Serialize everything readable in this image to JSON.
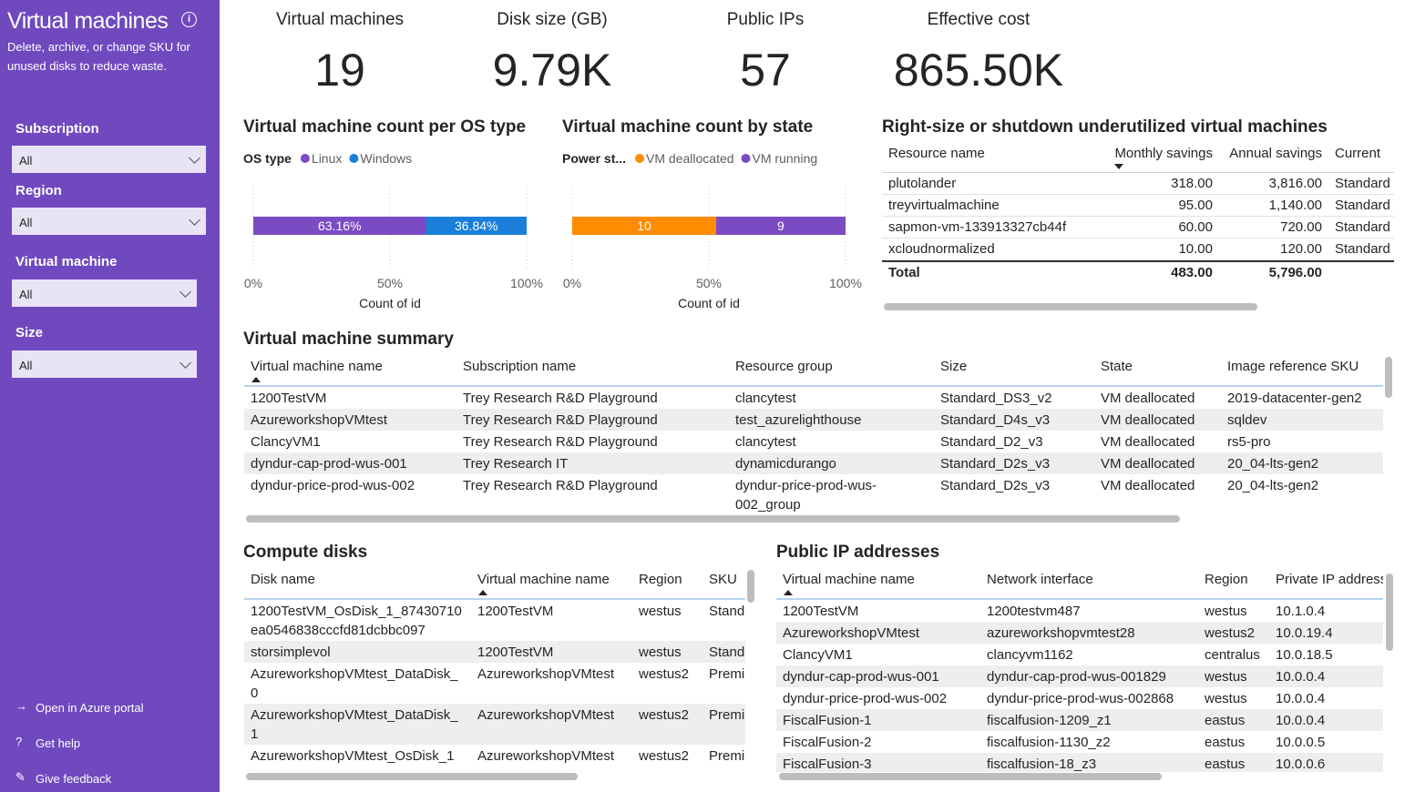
{
  "sidebar": {
    "title": "Virtual machines",
    "description": "Delete, archive, or change SKU for unused disks to reduce waste.",
    "filters": [
      {
        "label": "Subscription",
        "value": "All"
      },
      {
        "label": "Region",
        "value": "All"
      },
      {
        "label": "Virtual machine",
        "value": "All"
      },
      {
        "label": "Size",
        "value": "All"
      }
    ],
    "links": [
      "Open in Azure portal",
      "Get help",
      "Give feedback"
    ]
  },
  "cards": [
    {
      "label": "Virtual machines",
      "value": "19"
    },
    {
      "label": "Disk size (GB)",
      "value": "9.79K"
    },
    {
      "label": "Public IPs",
      "value": "57"
    },
    {
      "label": "Effective cost",
      "value": "865.50K"
    }
  ],
  "chart_data": [
    {
      "type": "bar",
      "orientation": "horizontal",
      "stacking": "percent",
      "title": "Virtual machine count per OS type",
      "legend_title": "OS type",
      "categories": [
        null
      ],
      "series": [
        {
          "name": "Linux",
          "color": "#7b4bc4",
          "values": [
            63.16
          ],
          "value_labels": [
            "63.16%"
          ]
        },
        {
          "name": "Windows",
          "color": "#1a7fd8",
          "values": [
            36.84
          ],
          "value_labels": [
            "36.84%"
          ]
        }
      ],
      "xlim": [
        0,
        100
      ],
      "xticks": [
        {
          "value": 0,
          "label": "0%"
        },
        {
          "value": 50,
          "label": "50%"
        },
        {
          "value": 100,
          "label": "100%"
        }
      ],
      "xlabel": "Count of id",
      "grid": true
    },
    {
      "type": "bar",
      "orientation": "horizontal",
      "stacking": "percent",
      "title": "Virtual machine count by state",
      "legend_title": "Power st...",
      "categories": [
        null
      ],
      "series": [
        {
          "name": "VM deallocated",
          "color": "#ff8c00",
          "values": [
            10
          ]
        },
        {
          "name": "VM running",
          "color": "#7b4bc4",
          "values": [
            9
          ]
        }
      ],
      "xlim": [
        0,
        100
      ],
      "xticks": [
        {
          "value": 0,
          "label": "0%"
        },
        {
          "value": 50,
          "label": "50%"
        },
        {
          "value": 100,
          "label": "100%"
        }
      ],
      "xlabel": "Count of id",
      "grid": true
    }
  ],
  "rightsize_table": {
    "title": "Right-size or shutdown underutilized virtual machines",
    "columns": [
      "Resource name",
      "Monthly savings",
      "Annual savings",
      "Current"
    ],
    "rows": [
      [
        "plutolander",
        "318.00",
        "3,816.00",
        "Standard"
      ],
      [
        "treyvirtualmachine",
        "95.00",
        "1,140.00",
        "Standard"
      ],
      [
        "sapmon-vm-133913327cb44f",
        "60.00",
        "720.00",
        "Standard"
      ],
      [
        "xcloudnormalized",
        "10.00",
        "120.00",
        "Standard"
      ]
    ],
    "total": [
      "Total",
      "483.00",
      "5,796.00"
    ]
  },
  "vm_summary": {
    "title": "Virtual machine summary",
    "columns": [
      "Virtual machine name",
      "Subscription name",
      "Resource group",
      "Size",
      "State",
      "Image reference SKU"
    ],
    "rows": [
      [
        "1200TestVM",
        "Trey Research R&D Playground",
        "clancytest",
        "Standard_DS3_v2",
        "VM deallocated",
        "2019-datacenter-gen2"
      ],
      [
        "AzureworkshopVMtest",
        "Trey Research R&D Playground",
        "test_azurelighthouse",
        "Standard_D4s_v3",
        "VM deallocated",
        "sqldev"
      ],
      [
        "ClancyVM1",
        "Trey Research R&D Playground",
        "clancytest",
        "Standard_D2_v3",
        "VM deallocated",
        "rs5-pro"
      ],
      [
        "dyndur-cap-prod-wus-001",
        "Trey Research IT",
        "dynamicdurango",
        "Standard_D2s_v3",
        "VM deallocated",
        "20_04-lts-gen2"
      ],
      [
        "dyndur-price-prod-wus-002",
        "Trey Research R&D Playground",
        "dyndur-price-prod-wus-002_group",
        "Standard_D2s_v3",
        "VM deallocated",
        "20_04-lts-gen2"
      ]
    ]
  },
  "compute_disks": {
    "title": "Compute disks",
    "columns": [
      "Disk name",
      "Virtual machine name",
      "Region",
      "SKU"
    ],
    "rows": [
      [
        "1200TestVM_OsDisk_1_87430710ea0546838cccfd81dcbbc097",
        "1200TestVM",
        "westus",
        "Stand"
      ],
      [
        "storsimplevol",
        "1200TestVM",
        "westus",
        "Stand"
      ],
      [
        "AzureworkshopVMtest_DataDisk_0",
        "AzureworkshopVMtest",
        "westus2",
        "Premi"
      ],
      [
        "AzureworkshopVMtest_DataDisk_1",
        "AzureworkshopVMtest",
        "westus2",
        "Premi"
      ],
      [
        "AzureworkshopVMtest_OsDisk_1",
        "AzureworkshopVMtest",
        "westus2",
        "Premi"
      ]
    ]
  },
  "public_ips": {
    "title": "Public IP addresses",
    "columns": [
      "Virtual machine name",
      "Network interface",
      "Region",
      "Private IP address"
    ],
    "rows": [
      [
        "1200TestVM",
        "1200testvm487",
        "westus",
        "10.1.0.4"
      ],
      [
        "AzureworkshopVMtest",
        "azureworkshopvmtest28",
        "westus2",
        "10.0.19.4"
      ],
      [
        "ClancyVM1",
        "clancyvm1162",
        "centralus",
        "10.0.18.5"
      ],
      [
        "dyndur-cap-prod-wus-001",
        "dyndur-cap-prod-wus-001829",
        "westus",
        "10.0.0.4"
      ],
      [
        "dyndur-price-prod-wus-002",
        "dyndur-price-prod-wus-002868",
        "westus",
        "10.0.0.4"
      ],
      [
        "FiscalFusion-1",
        "fiscalfusion-1209_z1",
        "eastus",
        "10.0.0.4"
      ],
      [
        "FiscalFusion-2",
        "fiscalfusion-1130_z2",
        "eastus",
        "10.0.0.5"
      ],
      [
        "FiscalFusion-3",
        "fiscalfusion-18_z3",
        "eastus",
        "10.0.0.6"
      ]
    ]
  }
}
